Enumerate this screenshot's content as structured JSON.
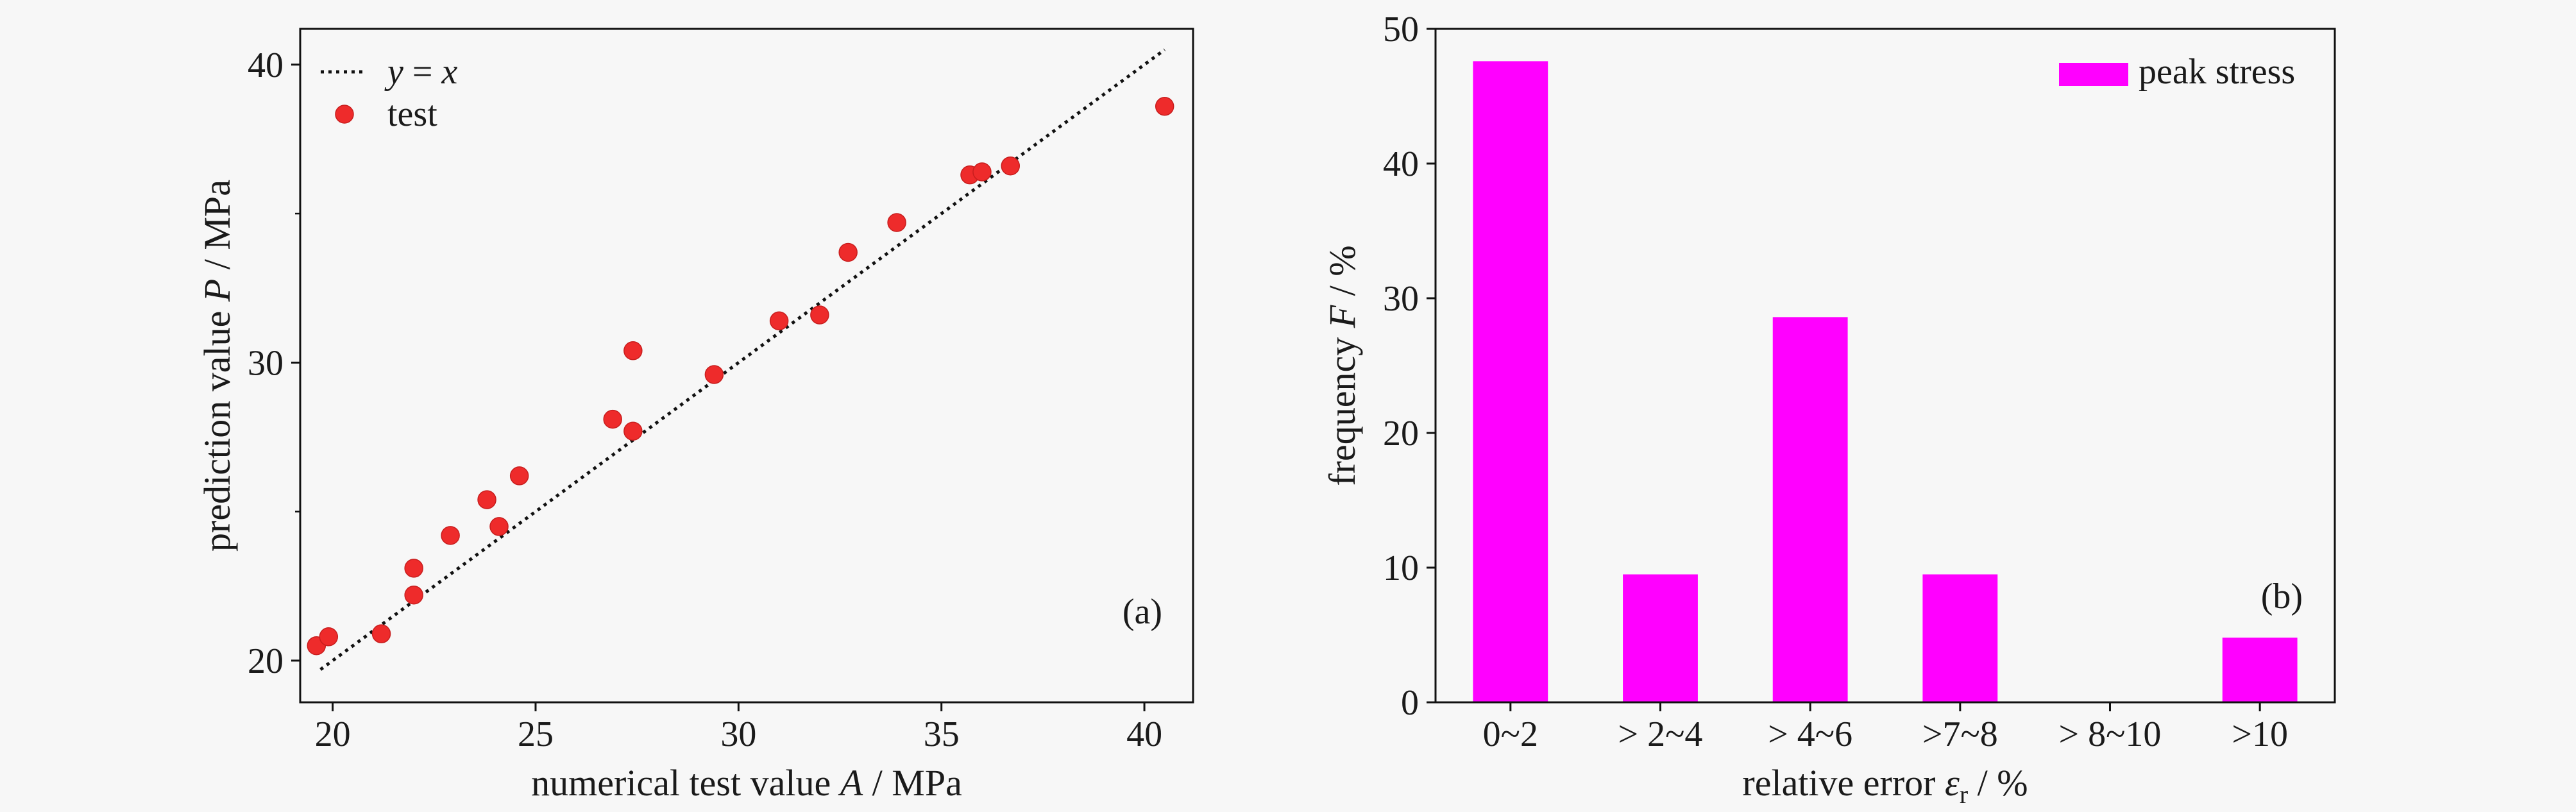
{
  "chart_data": [
    {
      "type": "scatter",
      "panel_label": "(a)",
      "xlabel": {
        "prefix": "numerical test value ",
        "symbol": "A",
        "suffix": " / MPa"
      },
      "ylabel": {
        "prefix": "prediction value ",
        "symbol": "P",
        "suffix": " / MPa"
      },
      "xlim": [
        19.2,
        41.2
      ],
      "ylim": [
        18.6,
        41.2
      ],
      "xticks": [
        20,
        25,
        30,
        35,
        40
      ],
      "yticks": [
        20,
        30,
        40
      ],
      "yticks_minor": [
        25,
        35
      ],
      "grid": false,
      "legend_position": "top-left",
      "legend": [
        {
          "label_parts": [
            "y",
            " = ",
            "x"
          ],
          "style": "dotted-line"
        },
        {
          "label": "test",
          "style": "marker"
        }
      ],
      "reference_line": {
        "name": "y = x",
        "x": [
          19.7,
          40.5
        ],
        "y": [
          19.7,
          40.5
        ],
        "color": "#111111"
      },
      "series": [
        {
          "name": "test",
          "color": "#ee2b2b",
          "points": [
            [
              19.6,
              20.5
            ],
            [
              19.9,
              20.8
            ],
            [
              21.2,
              20.9
            ],
            [
              22.0,
              22.2
            ],
            [
              22.0,
              23.1
            ],
            [
              22.9,
              24.2
            ],
            [
              23.8,
              25.4
            ],
            [
              24.1,
              24.5
            ],
            [
              24.6,
              26.2
            ],
            [
              26.9,
              28.1
            ],
            [
              27.4,
              27.7
            ],
            [
              27.4,
              30.4
            ],
            [
              29.4,
              29.6
            ],
            [
              31.0,
              31.4
            ],
            [
              32.0,
              31.6
            ],
            [
              32.7,
              33.7
            ],
            [
              33.9,
              34.7
            ],
            [
              35.7,
              36.3
            ],
            [
              36.0,
              36.4
            ],
            [
              36.7,
              36.6
            ],
            [
              40.5,
              38.6
            ]
          ]
        }
      ]
    },
    {
      "type": "bar",
      "panel_label": "(b)",
      "xlabel": {
        "prefix": "relative error ",
        "symbol": "ε",
        "subscript": "r",
        "suffix": " / %"
      },
      "ylabel": {
        "prefix": "frequency ",
        "symbol": "F",
        "suffix": " / %"
      },
      "categories": [
        "0~2",
        "> 2~4",
        "> 4~6",
        ">7~8",
        "> 8~10",
        ">10"
      ],
      "ylim": [
        0,
        50
      ],
      "yticks": [
        0,
        10,
        20,
        30,
        40,
        50
      ],
      "grid": false,
      "legend_position": "top-right",
      "series": [
        {
          "name": "peak stress",
          "color": "#ff00ff",
          "values": [
            47.6,
            9.5,
            28.6,
            9.5,
            0,
            4.8
          ]
        }
      ]
    }
  ]
}
